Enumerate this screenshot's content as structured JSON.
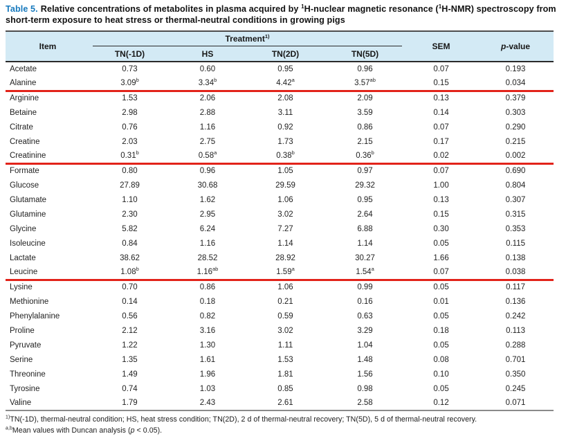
{
  "title": {
    "label": "Table 5.",
    "part1": "Relative concentrations of metabolites in plasma acquired by ",
    "sup1": "1",
    "part2": "H-nuclear magnetic resonance (",
    "sup2": "1",
    "part3": "H-NMR) spectroscopy from short-term exposure to heat stress or thermal-neutral conditions in growing pigs"
  },
  "header": {
    "item": "Item",
    "treatment": "Treatment",
    "treatment_sup": "1)",
    "treatments": [
      "TN(-1D)",
      "HS",
      "TN(2D)",
      "TN(5D)"
    ],
    "sem": "SEM",
    "p_italic": "p",
    "p_rest": "-value"
  },
  "colors": {
    "title_accent": "#1779bd",
    "header_bg": "#d3eaf5",
    "highlight_line": "#e2231a"
  },
  "rows": [
    {
      "item": "Acetate",
      "values": [
        {
          "v": "0.73",
          "s": ""
        },
        {
          "v": "0.60",
          "s": ""
        },
        {
          "v": "0.95",
          "s": ""
        },
        {
          "v": "0.96",
          "s": ""
        }
      ],
      "sem": "0.07",
      "p": "0.193",
      "highlight": false
    },
    {
      "item": "Alanine",
      "values": [
        {
          "v": "3.09",
          "s": "b"
        },
        {
          "v": "3.34",
          "s": "b"
        },
        {
          "v": "4.42",
          "s": "a"
        },
        {
          "v": "3.57",
          "s": "ab"
        }
      ],
      "sem": "0.15",
      "p": "0.034",
      "highlight": true
    },
    {
      "item": "Arginine",
      "values": [
        {
          "v": "1.53",
          "s": ""
        },
        {
          "v": "2.06",
          "s": ""
        },
        {
          "v": "2.08",
          "s": ""
        },
        {
          "v": "2.09",
          "s": ""
        }
      ],
      "sem": "0.13",
      "p": "0.379",
      "highlight": false
    },
    {
      "item": "Betaine",
      "values": [
        {
          "v": "2.98",
          "s": ""
        },
        {
          "v": "2.88",
          "s": ""
        },
        {
          "v": "3.11",
          "s": ""
        },
        {
          "v": "3.59",
          "s": ""
        }
      ],
      "sem": "0.14",
      "p": "0.303",
      "highlight": false
    },
    {
      "item": "Citrate",
      "values": [
        {
          "v": "0.76",
          "s": ""
        },
        {
          "v": "1.16",
          "s": ""
        },
        {
          "v": "0.92",
          "s": ""
        },
        {
          "v": "0.86",
          "s": ""
        }
      ],
      "sem": "0.07",
      "p": "0.290",
      "highlight": false
    },
    {
      "item": "Creatine",
      "values": [
        {
          "v": "2.03",
          "s": ""
        },
        {
          "v": "2.75",
          "s": ""
        },
        {
          "v": "1.73",
          "s": ""
        },
        {
          "v": "2.15",
          "s": ""
        }
      ],
      "sem": "0.17",
      "p": "0.215",
      "highlight": false
    },
    {
      "item": "Creatinine",
      "values": [
        {
          "v": "0.31",
          "s": "b"
        },
        {
          "v": "0.58",
          "s": "a"
        },
        {
          "v": "0.38",
          "s": "b"
        },
        {
          "v": "0.36",
          "s": "b"
        }
      ],
      "sem": "0.02",
      "p": "0.002",
      "highlight": true
    },
    {
      "item": "Formate",
      "values": [
        {
          "v": "0.80",
          "s": ""
        },
        {
          "v": "0.96",
          "s": ""
        },
        {
          "v": "1.05",
          "s": ""
        },
        {
          "v": "0.97",
          "s": ""
        }
      ],
      "sem": "0.07",
      "p": "0.690",
      "highlight": false
    },
    {
      "item": "Glucose",
      "values": [
        {
          "v": "27.89",
          "s": ""
        },
        {
          "v": "30.68",
          "s": ""
        },
        {
          "v": "29.59",
          "s": ""
        },
        {
          "v": "29.32",
          "s": ""
        }
      ],
      "sem": "1.00",
      "p": "0.804",
      "highlight": false
    },
    {
      "item": "Glutamate",
      "values": [
        {
          "v": "1.10",
          "s": ""
        },
        {
          "v": "1.62",
          "s": ""
        },
        {
          "v": "1.06",
          "s": ""
        },
        {
          "v": "0.95",
          "s": ""
        }
      ],
      "sem": "0.13",
      "p": "0.307",
      "highlight": false
    },
    {
      "item": "Glutamine",
      "values": [
        {
          "v": "2.30",
          "s": ""
        },
        {
          "v": "2.95",
          "s": ""
        },
        {
          "v": "3.02",
          "s": ""
        },
        {
          "v": "2.64",
          "s": ""
        }
      ],
      "sem": "0.15",
      "p": "0.315",
      "highlight": false
    },
    {
      "item": "Glycine",
      "values": [
        {
          "v": "5.82",
          "s": ""
        },
        {
          "v": "6.24",
          "s": ""
        },
        {
          "v": "7.27",
          "s": ""
        },
        {
          "v": "6.88",
          "s": ""
        }
      ],
      "sem": "0.30",
      "p": "0.353",
      "highlight": false
    },
    {
      "item": "Isoleucine",
      "values": [
        {
          "v": "0.84",
          "s": ""
        },
        {
          "v": "1.16",
          "s": ""
        },
        {
          "v": "1.14",
          "s": ""
        },
        {
          "v": "1.14",
          "s": ""
        }
      ],
      "sem": "0.05",
      "p": "0.115",
      "highlight": false
    },
    {
      "item": "Lactate",
      "values": [
        {
          "v": "38.62",
          "s": ""
        },
        {
          "v": "28.52",
          "s": ""
        },
        {
          "v": "28.92",
          "s": ""
        },
        {
          "v": "30.27",
          "s": ""
        }
      ],
      "sem": "1.66",
      "p": "0.138",
      "highlight": false
    },
    {
      "item": "Leucine",
      "values": [
        {
          "v": "1.08",
          "s": "b"
        },
        {
          "v": "1.16",
          "s": "ab"
        },
        {
          "v": "1.59",
          "s": "a"
        },
        {
          "v": "1.54",
          "s": "a"
        }
      ],
      "sem": "0.07",
      "p": "0.038",
      "highlight": true
    },
    {
      "item": "Lysine",
      "values": [
        {
          "v": "0.70",
          "s": ""
        },
        {
          "v": "0.86",
          "s": ""
        },
        {
          "v": "1.06",
          "s": ""
        },
        {
          "v": "0.99",
          "s": ""
        }
      ],
      "sem": "0.05",
      "p": "0.117",
      "highlight": false
    },
    {
      "item": "Methionine",
      "values": [
        {
          "v": "0.14",
          "s": ""
        },
        {
          "v": "0.18",
          "s": ""
        },
        {
          "v": "0.21",
          "s": ""
        },
        {
          "v": "0.16",
          "s": ""
        }
      ],
      "sem": "0.01",
      "p": "0.136",
      "highlight": false
    },
    {
      "item": "Phenylalanine",
      "values": [
        {
          "v": "0.56",
          "s": ""
        },
        {
          "v": "0.82",
          "s": ""
        },
        {
          "v": "0.59",
          "s": ""
        },
        {
          "v": "0.63",
          "s": ""
        }
      ],
      "sem": "0.05",
      "p": "0.242",
      "highlight": false
    },
    {
      "item": "Proline",
      "values": [
        {
          "v": "2.12",
          "s": ""
        },
        {
          "v": "3.16",
          "s": ""
        },
        {
          "v": "3.02",
          "s": ""
        },
        {
          "v": "3.29",
          "s": ""
        }
      ],
      "sem": "0.18",
      "p": "0.113",
      "highlight": false
    },
    {
      "item": "Pyruvate",
      "values": [
        {
          "v": "1.22",
          "s": ""
        },
        {
          "v": "1.30",
          "s": ""
        },
        {
          "v": "1.11",
          "s": ""
        },
        {
          "v": "1.04",
          "s": ""
        }
      ],
      "sem": "0.05",
      "p": "0.288",
      "highlight": false
    },
    {
      "item": "Serine",
      "values": [
        {
          "v": "1.35",
          "s": ""
        },
        {
          "v": "1.61",
          "s": ""
        },
        {
          "v": "1.53",
          "s": ""
        },
        {
          "v": "1.48",
          "s": ""
        }
      ],
      "sem": "0.08",
      "p": "0.701",
      "highlight": false
    },
    {
      "item": "Threonine",
      "values": [
        {
          "v": "1.49",
          "s": ""
        },
        {
          "v": "1.96",
          "s": ""
        },
        {
          "v": "1.81",
          "s": ""
        },
        {
          "v": "1.56",
          "s": ""
        }
      ],
      "sem": "0.10",
      "p": "0.350",
      "highlight": false
    },
    {
      "item": "Tyrosine",
      "values": [
        {
          "v": "0.74",
          "s": ""
        },
        {
          "v": "1.03",
          "s": ""
        },
        {
          "v": "0.85",
          "s": ""
        },
        {
          "v": "0.98",
          "s": ""
        }
      ],
      "sem": "0.05",
      "p": "0.245",
      "highlight": false
    },
    {
      "item": "Valine",
      "values": [
        {
          "v": "1.79",
          "s": ""
        },
        {
          "v": "2.43",
          "s": ""
        },
        {
          "v": "2.61",
          "s": ""
        },
        {
          "v": "2.58",
          "s": ""
        }
      ],
      "sem": "0.12",
      "p": "0.071",
      "highlight": false
    }
  ],
  "footnotes": [
    {
      "sup": "1)",
      "text": "TN(-1D), thermal-neutral condition; HS, heat stress condition; TN(2D), 2 d of thermal-neutral recovery; TN(5D), 5 d of thermal-neutral recovery."
    },
    {
      "sup": "a,b",
      "pre": "Mean values with Duncan analysis (",
      "italic": "p",
      "post": " < 0.05)."
    }
  ]
}
